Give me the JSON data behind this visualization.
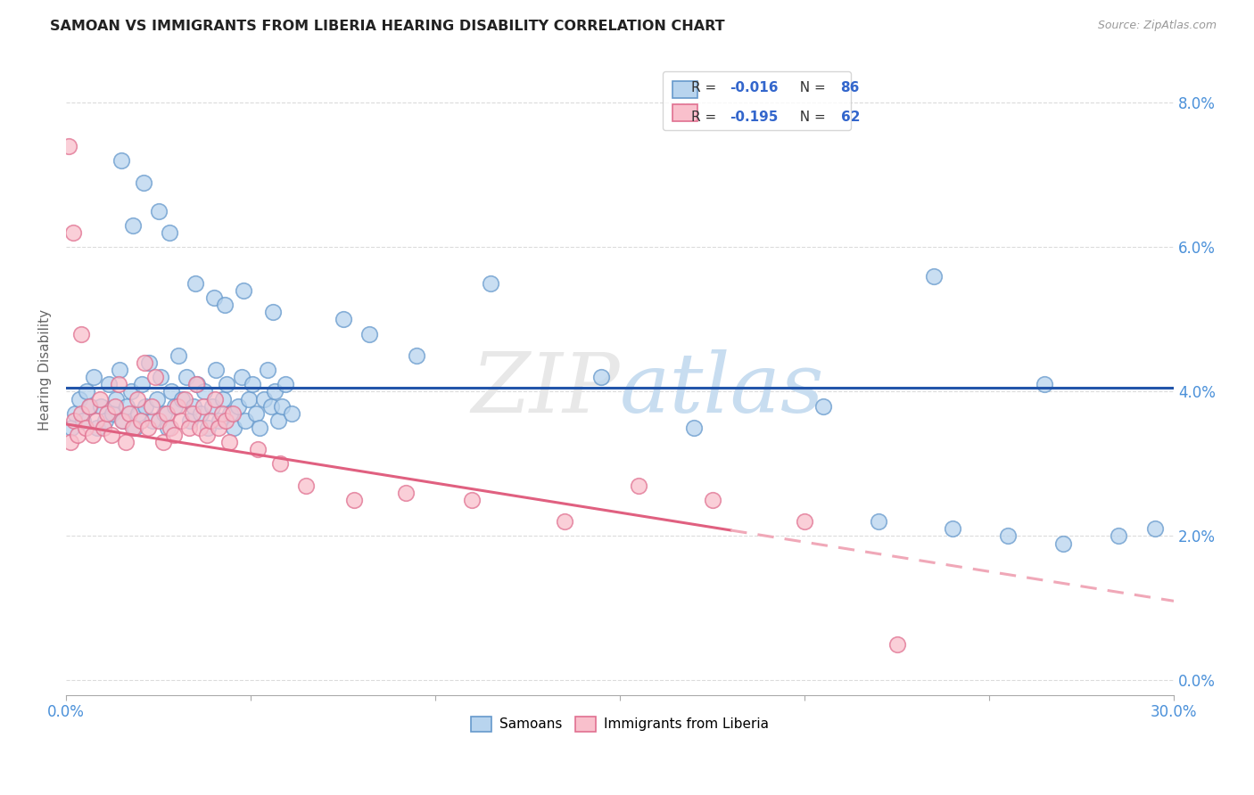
{
  "title": "SAMOAN VS IMMIGRANTS FROM LIBERIA HEARING DISABILITY CORRELATION CHART",
  "source": "Source: ZipAtlas.com",
  "ylabel": "Hearing Disability",
  "ytick_vals": [
    0.0,
    2.0,
    4.0,
    6.0,
    8.0
  ],
  "xlim": [
    0.0,
    30.0
  ],
  "ylim": [
    -0.2,
    8.8
  ],
  "color_samoan_fill": "#b8d4ee",
  "color_samoan_edge": "#6699cc",
  "color_liberia_fill": "#f9c0cc",
  "color_liberia_edge": "#e07090",
  "color_line_samoan": "#2255aa",
  "color_line_liberia_solid": "#e06080",
  "color_line_liberia_dashed": "#f0a8b8",
  "watermark": "ZIPatlas",
  "grid_color": "#cccccc",
  "background_color": "#ffffff",
  "samoans": [
    [
      0.15,
      3.5
    ],
    [
      0.25,
      3.7
    ],
    [
      0.35,
      3.9
    ],
    [
      0.45,
      3.6
    ],
    [
      0.55,
      4.0
    ],
    [
      0.65,
      3.8
    ],
    [
      0.75,
      4.2
    ],
    [
      0.85,
      3.5
    ],
    [
      0.95,
      3.8
    ],
    [
      1.05,
      3.6
    ],
    [
      1.15,
      4.1
    ],
    [
      1.25,
      3.7
    ],
    [
      1.35,
      3.9
    ],
    [
      1.45,
      4.3
    ],
    [
      1.55,
      3.6
    ],
    [
      1.65,
      3.8
    ],
    [
      1.75,
      4.0
    ],
    [
      1.85,
      3.5
    ],
    [
      1.95,
      3.7
    ],
    [
      2.05,
      4.1
    ],
    [
      2.15,
      3.8
    ],
    [
      2.25,
      4.4
    ],
    [
      2.35,
      3.6
    ],
    [
      2.45,
      3.9
    ],
    [
      2.55,
      4.2
    ],
    [
      2.65,
      3.7
    ],
    [
      2.75,
      3.5
    ],
    [
      2.85,
      4.0
    ],
    [
      2.95,
      3.8
    ],
    [
      3.05,
      4.5
    ],
    [
      3.15,
      3.9
    ],
    [
      3.25,
      4.2
    ],
    [
      3.35,
      3.6
    ],
    [
      3.45,
      3.8
    ],
    [
      3.55,
      4.1
    ],
    [
      3.65,
      3.7
    ],
    [
      3.75,
      4.0
    ],
    [
      3.85,
      3.5
    ],
    [
      3.95,
      3.8
    ],
    [
      4.05,
      4.3
    ],
    [
      4.15,
      3.6
    ],
    [
      4.25,
      3.9
    ],
    [
      4.35,
      4.1
    ],
    [
      4.45,
      3.7
    ],
    [
      4.55,
      3.5
    ],
    [
      4.65,
      3.8
    ],
    [
      4.75,
      4.2
    ],
    [
      4.85,
      3.6
    ],
    [
      4.95,
      3.9
    ],
    [
      5.05,
      4.1
    ],
    [
      5.15,
      3.7
    ],
    [
      5.25,
      3.5
    ],
    [
      5.35,
      3.9
    ],
    [
      5.45,
      4.3
    ],
    [
      5.55,
      3.8
    ],
    [
      5.65,
      4.0
    ],
    [
      5.75,
      3.6
    ],
    [
      5.85,
      3.8
    ],
    [
      5.95,
      4.1
    ],
    [
      6.1,
      3.7
    ],
    [
      1.5,
      7.2
    ],
    [
      2.1,
      6.9
    ],
    [
      1.8,
      6.3
    ],
    [
      2.5,
      6.5
    ],
    [
      2.8,
      6.2
    ],
    [
      3.5,
      5.5
    ],
    [
      4.0,
      5.3
    ],
    [
      4.3,
      5.2
    ],
    [
      4.8,
      5.4
    ],
    [
      5.6,
      5.1
    ],
    [
      7.5,
      5.0
    ],
    [
      8.2,
      4.8
    ],
    [
      9.5,
      4.5
    ],
    [
      11.5,
      5.5
    ],
    [
      14.5,
      4.2
    ],
    [
      17.0,
      3.5
    ],
    [
      20.5,
      3.8
    ],
    [
      22.0,
      2.2
    ],
    [
      24.0,
      2.1
    ],
    [
      25.5,
      2.0
    ],
    [
      27.0,
      1.9
    ],
    [
      23.5,
      5.6
    ],
    [
      26.5,
      4.1
    ],
    [
      28.5,
      2.0
    ],
    [
      29.5,
      2.1
    ]
  ],
  "liberians": [
    [
      0.12,
      3.3
    ],
    [
      0.22,
      3.6
    ],
    [
      0.32,
      3.4
    ],
    [
      0.42,
      3.7
    ],
    [
      0.52,
      3.5
    ],
    [
      0.62,
      3.8
    ],
    [
      0.72,
      3.4
    ],
    [
      0.82,
      3.6
    ],
    [
      0.92,
      3.9
    ],
    [
      1.02,
      3.5
    ],
    [
      1.12,
      3.7
    ],
    [
      1.22,
      3.4
    ],
    [
      1.32,
      3.8
    ],
    [
      1.42,
      4.1
    ],
    [
      1.52,
      3.6
    ],
    [
      1.62,
      3.3
    ],
    [
      1.72,
      3.7
    ],
    [
      1.82,
      3.5
    ],
    [
      1.92,
      3.9
    ],
    [
      2.02,
      3.6
    ],
    [
      2.12,
      4.4
    ],
    [
      2.22,
      3.5
    ],
    [
      2.32,
      3.8
    ],
    [
      2.42,
      4.2
    ],
    [
      2.52,
      3.6
    ],
    [
      2.62,
      3.3
    ],
    [
      2.72,
      3.7
    ],
    [
      2.82,
      3.5
    ],
    [
      2.92,
      3.4
    ],
    [
      3.02,
      3.8
    ],
    [
      3.12,
      3.6
    ],
    [
      3.22,
      3.9
    ],
    [
      3.32,
      3.5
    ],
    [
      3.42,
      3.7
    ],
    [
      3.52,
      4.1
    ],
    [
      3.62,
      3.5
    ],
    [
      3.72,
      3.8
    ],
    [
      3.82,
      3.4
    ],
    [
      3.92,
      3.6
    ],
    [
      4.02,
      3.9
    ],
    [
      4.12,
      3.5
    ],
    [
      4.22,
      3.7
    ],
    [
      4.32,
      3.6
    ],
    [
      4.42,
      3.3
    ],
    [
      4.52,
      3.7
    ],
    [
      0.08,
      7.4
    ],
    [
      0.18,
      6.2
    ],
    [
      0.4,
      4.8
    ],
    [
      5.2,
      3.2
    ],
    [
      5.8,
      3.0
    ],
    [
      6.5,
      2.7
    ],
    [
      7.8,
      2.5
    ],
    [
      9.2,
      2.6
    ],
    [
      11.0,
      2.5
    ],
    [
      13.5,
      2.2
    ],
    [
      15.5,
      2.7
    ],
    [
      17.5,
      2.5
    ],
    [
      20.0,
      2.2
    ],
    [
      22.5,
      0.5
    ]
  ],
  "liberia_trend_x0": 0.0,
  "liberia_trend_y0": 3.55,
  "liberia_trend_x1": 30.0,
  "liberia_trend_y1": 1.1,
  "liberia_solid_end": 18.0,
  "samoan_trend_y": 4.05
}
